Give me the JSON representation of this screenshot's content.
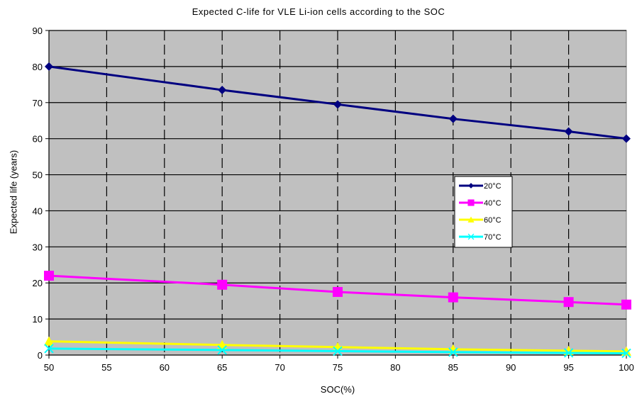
{
  "chart_data": {
    "type": "line",
    "title": "Expected C-life for VLE Li-ion cells according to the SOC",
    "xlabel": "SOC(%)",
    "ylabel": "Expected life (years)",
    "xlim": [
      50,
      100
    ],
    "ylim": [
      0,
      90
    ],
    "x_ticks": [
      50,
      55,
      60,
      65,
      70,
      75,
      80,
      85,
      90,
      95,
      100
    ],
    "y_ticks": [
      0,
      10,
      20,
      30,
      40,
      50,
      60,
      70,
      80,
      90
    ],
    "grid": true,
    "legend_position": "center-right",
    "plot_background": "#c0c0c0",
    "series": [
      {
        "name": "20°C",
        "color": "#000080",
        "marker": "diamond",
        "x": [
          50,
          65,
          75,
          85,
          95,
          100
        ],
        "values": [
          80,
          73.5,
          69.5,
          65.5,
          62,
          60
        ]
      },
      {
        "name": "40°C",
        "color": "#ff00ff",
        "marker": "square",
        "x": [
          50,
          65,
          75,
          85,
          95,
          100
        ],
        "values": [
          22,
          19.5,
          17.5,
          16,
          14.7,
          14
        ]
      },
      {
        "name": "60°C",
        "color": "#ffff00",
        "marker": "triangle",
        "x": [
          50,
          65,
          75,
          85,
          95,
          100
        ],
        "values": [
          3.8,
          2.8,
          2.2,
          1.6,
          1.2,
          1.0
        ]
      },
      {
        "name": "70°C",
        "color": "#00ffff",
        "marker": "x",
        "x": [
          50,
          65,
          75,
          85,
          95,
          100
        ],
        "values": [
          1.8,
          1.4,
          1.1,
          0.8,
          0.6,
          0.5
        ]
      }
    ]
  }
}
